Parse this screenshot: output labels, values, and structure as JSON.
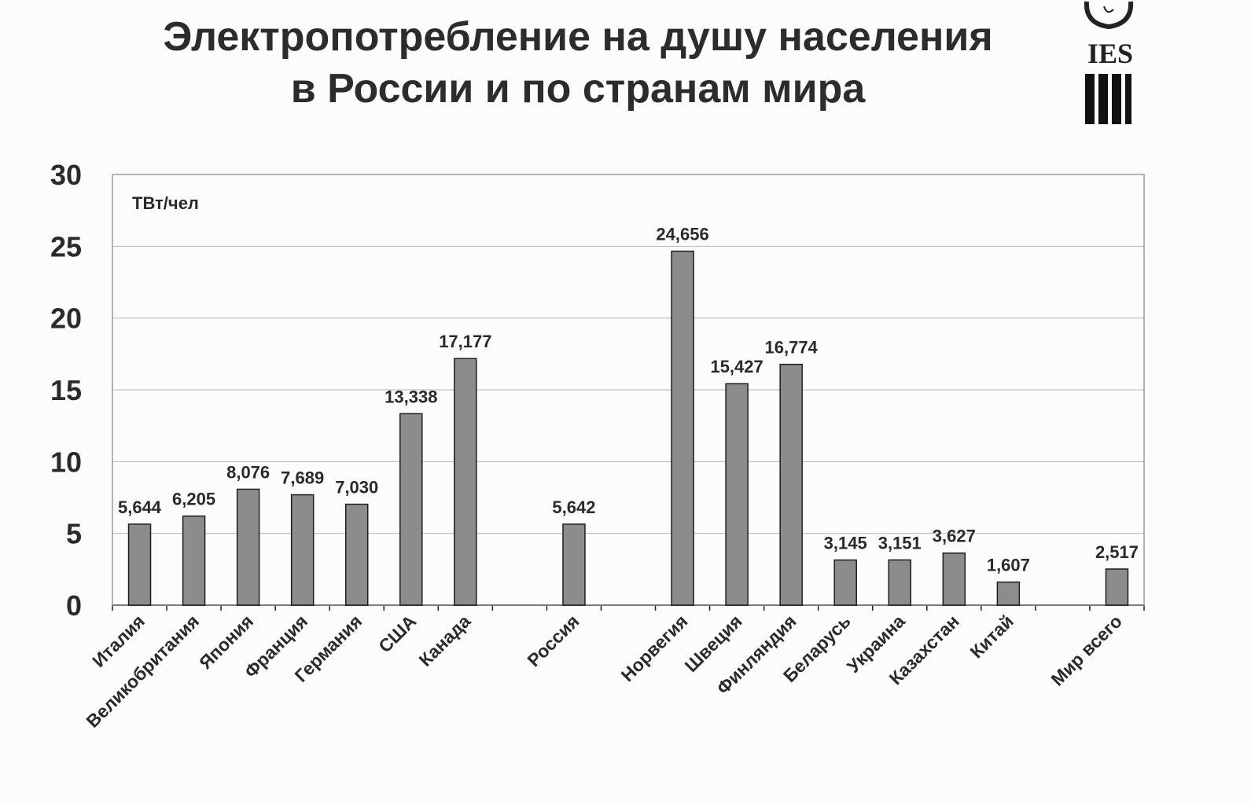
{
  "chart_data": {
    "type": "bar",
    "title": "Электропотребление на душу населения в России и по странам мира",
    "title_lines": [
      "Электропотребление на душу населения",
      "в России и по странам мира"
    ],
    "ylabel": "ТВт/чел",
    "xlabel": "",
    "ylim": [
      0,
      30
    ],
    "yticks": [
      0,
      5,
      10,
      15,
      20,
      25,
      30
    ],
    "grid": true,
    "slots": 19,
    "categories": [
      "Италия",
      "Великобритания",
      "Япония",
      "Франция",
      "Германия",
      "США",
      "Канада",
      "Россия",
      "Норвегия",
      "Швеция",
      "Финляндия",
      "Беларусь",
      "Украина",
      "Казахстан",
      "Китай",
      "Мир всего"
    ],
    "category_slots": [
      0,
      1,
      2,
      3,
      4,
      5,
      6,
      8,
      10,
      11,
      12,
      13,
      14,
      15,
      16,
      18
    ],
    "values": [
      5.644,
      6.205,
      8.076,
      7.689,
      7.03,
      13.338,
      17.177,
      5.642,
      24.656,
      15.427,
      16.774,
      3.145,
      3.151,
      3.627,
      1.607,
      2.517
    ],
    "value_labels": [
      "5,644",
      "6,205",
      "8,076",
      "7,689",
      "7,030",
      "13,338",
      "17,177",
      "5,642",
      "24,656",
      "15,427",
      "16,774",
      "3,145",
      "3,151",
      "3,627",
      "1,607",
      "2,517"
    ],
    "bar_color": "#8c8c8c",
    "bar_stroke": "#1e1e1e"
  },
  "logo": {
    "text": "IES"
  }
}
